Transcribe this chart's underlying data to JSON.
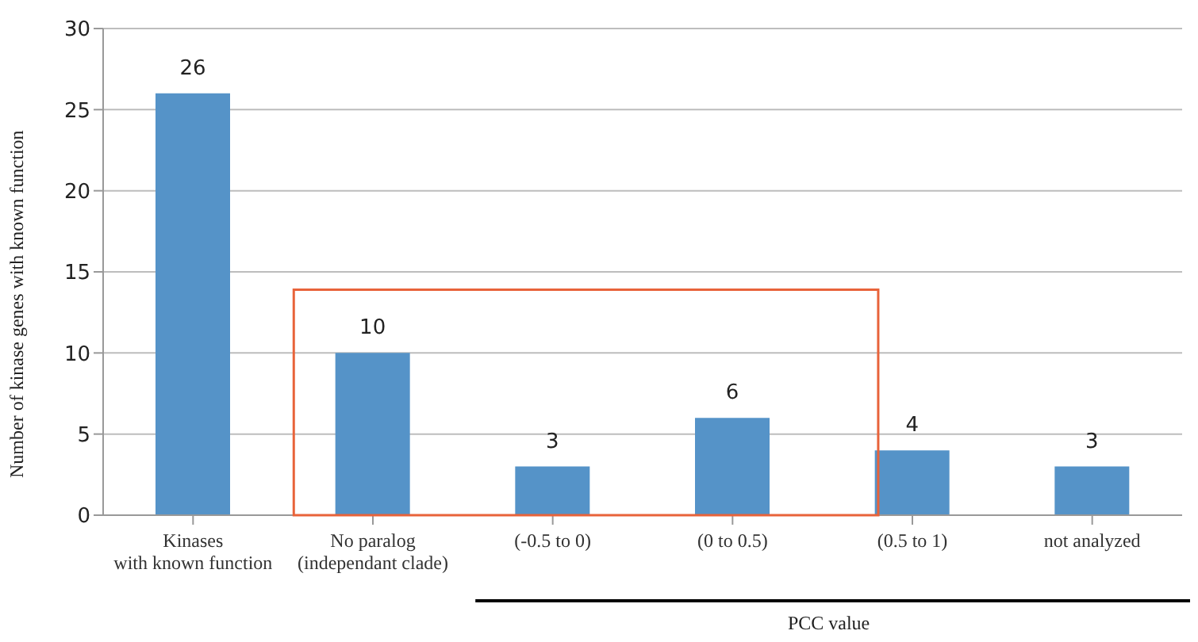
{
  "chart_data": {
    "type": "bar",
    "ylabel": "Number of kinase genes with known function",
    "categories": [
      "Kinases\nwith known function",
      "No paralog\n(independant clade)",
      "(-0.5 to 0)",
      "(0 to 0.5)",
      "(0.5 to 1)",
      "not analyzed"
    ],
    "values": [
      26,
      10,
      3,
      6,
      4,
      3
    ],
    "color": "#5593c8",
    "ylim": [
      0,
      30
    ],
    "yticks": [
      0,
      5,
      10,
      15,
      20,
      25,
      30
    ],
    "grid": "y",
    "data_labels": true,
    "annotations": [
      "PCC value"
    ]
  }
}
